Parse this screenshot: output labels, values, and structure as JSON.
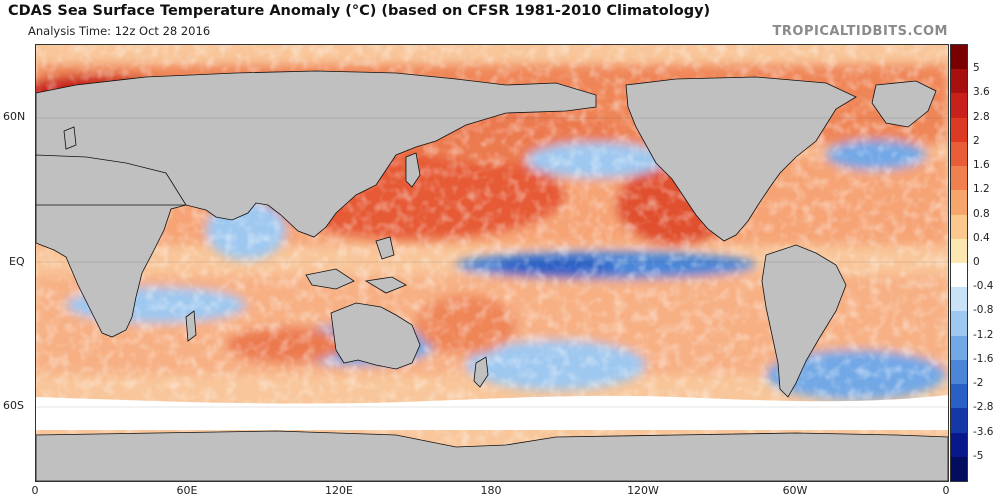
{
  "header": {
    "title": "CDAS Sea Surface Temperature Anomaly (°C) (based on CFSR 1981-2010 Climatology)",
    "analysis_time": "Analysis Time: 12z Oct 28 2016",
    "brand": "TROPICALTIDBITS.COM"
  },
  "map": {
    "lat_labels": [
      "60N",
      "EQ",
      "60S"
    ],
    "lon_labels": [
      "0",
      "60E",
      "120E",
      "180",
      "120W",
      "60W",
      "0"
    ],
    "land_color": "#c0c0c0",
    "border_color": "#111111"
  },
  "colorbar": {
    "labels": [
      "5",
      "3.6",
      "2.8",
      "2",
      "1.6",
      "1.2",
      "0.8",
      "0.4",
      "0",
      "-0.4",
      "-0.8",
      "-1.2",
      "-1.6",
      "-2",
      "-2.8",
      "-3.6",
      "-5"
    ],
    "colors": [
      "#7a0000",
      "#a80f0f",
      "#c8201a",
      "#dc3a25",
      "#e85c38",
      "#f0804e",
      "#f6a66b",
      "#fbc98e",
      "#fbe7b0",
      "#ffffff",
      "#c9e2f8",
      "#9fc8f0",
      "#72a8e6",
      "#4a85d8",
      "#2a5fc6",
      "#1438a8",
      "#08188a",
      "#030c5e"
    ]
  }
}
